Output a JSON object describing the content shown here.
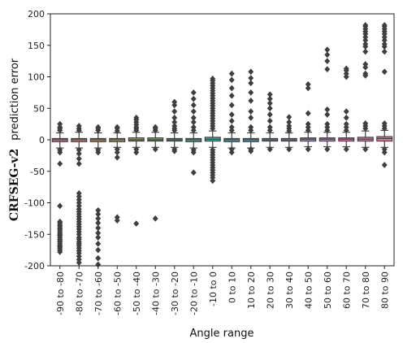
{
  "chart_data": {
    "type": "box",
    "title": "",
    "xlabel": "Angle range",
    "ylabel_bold": "CRFSEG-v2",
    "ylabel_rest": "prediction error",
    "ylim": [
      -200,
      200
    ],
    "yticks": [
      -200,
      -150,
      -100,
      -50,
      0,
      50,
      100,
      150,
      200
    ],
    "grid": false,
    "legend": "none",
    "categories": [
      "-90 to -80",
      "-80 to -70",
      "-70 to -60",
      "-60 to -50",
      "-50 to -40",
      "-40 to -30",
      "-30 to -20",
      "-20 to -10",
      "-10 to 0",
      "0 to 10",
      "10 to 20",
      "20 to 30",
      "30 to 40",
      "40 to 50",
      "50 to 60",
      "60 to 70",
      "70 to 80",
      "80 to 90"
    ],
    "colors": [
      "#e1849a",
      "#dd8a83",
      "#c99a69",
      "#b2a360",
      "#99aa5d",
      "#6fb15d",
      "#5db27d",
      "#58b09a",
      "#56adaa",
      "#58a9b8",
      "#5ea4c6",
      "#6c9bd4",
      "#9592de",
      "#b48ad9",
      "#c787d3",
      "#d583c5",
      "#df80b3",
      "#e283a4"
    ],
    "boxes": [
      {
        "q1": -3,
        "median": 0,
        "q3": 2,
        "wlow": -13,
        "whigh": 11,
        "outliers": [
          -178,
          -175,
          -172,
          -170,
          -168,
          -165,
          -162,
          -160,
          -158,
          -155,
          -152,
          -150,
          -148,
          -145,
          -142,
          -140,
          -137,
          -135,
          -132,
          -130,
          -105,
          -38,
          -20,
          -16,
          15,
          18,
          20,
          25
        ]
      },
      {
        "q1": -3,
        "median": 0,
        "q3": 2,
        "wlow": -13,
        "whigh": 12,
        "outliers": [
          -195,
          -190,
          -185,
          -180,
          -176,
          -172,
          -168,
          -165,
          -162,
          -158,
          -155,
          -150,
          -146,
          -142,
          -138,
          -134,
          -130,
          -126,
          -122,
          -118,
          -114,
          -110,
          -105,
          -100,
          -95,
          -90,
          -85,
          -38,
          -30,
          -22,
          -16,
          15,
          18,
          22
        ]
      },
      {
        "q1": -3,
        "median": 0,
        "q3": 2,
        "wlow": -13,
        "whigh": 11,
        "outliers": [
          -198,
          -188,
          -175,
          -165,
          -155,
          -148,
          -140,
          -132,
          -125,
          -118,
          -112,
          -20,
          -16,
          15,
          18,
          20
        ]
      },
      {
        "q1": -3,
        "median": 0,
        "q3": 2,
        "wlow": -12,
        "whigh": 11,
        "outliers": [
          -128,
          -123,
          -28,
          -20,
          -15,
          14,
          18,
          20
        ]
      },
      {
        "q1": -2,
        "median": 0,
        "q3": 3,
        "wlow": -12,
        "whigh": 12,
        "outliers": [
          -133,
          -20,
          -15,
          15,
          18,
          20,
          24,
          28,
          32,
          35
        ]
      },
      {
        "q1": -2,
        "median": 0,
        "q3": 3,
        "wlow": -12,
        "whigh": 12,
        "outliers": [
          -125,
          -15,
          15,
          18,
          20
        ]
      },
      {
        "q1": -2,
        "median": 0,
        "q3": 2,
        "wlow": -12,
        "whigh": 11,
        "outliers": [
          -18,
          -15,
          15,
          18,
          22,
          28,
          35,
          45,
          55,
          60
        ]
      },
      {
        "q1": -3,
        "median": 0,
        "q3": 2,
        "wlow": -13,
        "whigh": 11,
        "outliers": [
          -52,
          -20,
          -16,
          15,
          20,
          28,
          35,
          45,
          55,
          65,
          75
        ]
      },
      {
        "q1": -2,
        "median": 1,
        "q3": 4,
        "wlow": -12,
        "whigh": 14,
        "outliers": [
          -65,
          -60,
          -56,
          -52,
          -48,
          -44,
          -40,
          -36,
          -32,
          -28,
          -24,
          -20,
          -16,
          18,
          22,
          26,
          30,
          34,
          38,
          42,
          46,
          50,
          54,
          58,
          62,
          66,
          70,
          74,
          78,
          82,
          86,
          90,
          94,
          97
        ]
      },
      {
        "q1": -3,
        "median": 0,
        "q3": 2,
        "wlow": -13,
        "whigh": 11,
        "outliers": [
          -20,
          -15,
          15,
          20,
          30,
          40,
          55,
          70,
          82,
          95,
          105
        ]
      },
      {
        "q1": -3,
        "median": 0,
        "q3": 2,
        "wlow": -13,
        "whigh": 11,
        "outliers": [
          -18,
          -15,
          15,
          20,
          35,
          45,
          62,
          75,
          90,
          98,
          108
        ]
      },
      {
        "q1": -2,
        "median": 0,
        "q3": 2,
        "wlow": -12,
        "whigh": 11,
        "outliers": [
          -15,
          15,
          20,
          30,
          40,
          50,
          58,
          65,
          72
        ]
      },
      {
        "q1": -2,
        "median": 0,
        "q3": 2,
        "wlow": -12,
        "whigh": 11,
        "outliers": [
          -15,
          14,
          18,
          22,
          28,
          36
        ]
      },
      {
        "q1": -2,
        "median": 1,
        "q3": 3,
        "wlow": -11,
        "whigh": 12,
        "outliers": [
          -15,
          15,
          20,
          25,
          42,
          82,
          88
        ]
      },
      {
        "q1": -2,
        "median": 1,
        "q3": 3,
        "wlow": -11,
        "whigh": 12,
        "outliers": [
          -15,
          15,
          20,
          25,
          40,
          48,
          112,
          125,
          135,
          143
        ]
      },
      {
        "q1": -2,
        "median": 1,
        "q3": 3,
        "wlow": -11,
        "whigh": 12,
        "outliers": [
          -15,
          15,
          20,
          25,
          35,
          45,
          100,
          105,
          110,
          113
        ]
      },
      {
        "q1": -2,
        "median": 1,
        "q3": 4,
        "wlow": -12,
        "whigh": 14,
        "outliers": [
          -15,
          18,
          22,
          26,
          102,
          105,
          115,
          120,
          140,
          148,
          152,
          158,
          163,
          168,
          172,
          176,
          180,
          182
        ]
      },
      {
        "q1": -2,
        "median": 2,
        "q3": 5,
        "wlow": -12,
        "whigh": 15,
        "outliers": [
          -40,
          -20,
          -15,
          18,
          22,
          26,
          108,
          140,
          148,
          152,
          158,
          163,
          168,
          172,
          176,
          180,
          182
        ]
      }
    ]
  }
}
